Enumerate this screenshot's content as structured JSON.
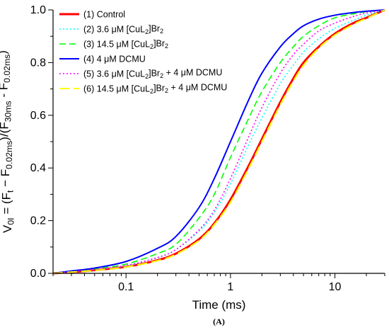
{
  "chart_data": {
    "type": "line",
    "panel_label": "(A)",
    "xlabel": "Time (ms)",
    "ylabel": {
      "parts": [
        "V",
        "0I",
        " = (F",
        "t",
        " − F",
        "0.02ms",
        ")/(F",
        "30ms",
        " - F",
        "0.02ms",
        ")"
      ]
    },
    "xscale": "log",
    "xlim": [
      0.02,
      30
    ],
    "ylim": [
      0.0,
      1.0
    ],
    "x_ticks": [
      0.1,
      1,
      10
    ],
    "x_tick_labels": [
      "0.1",
      "1",
      "10"
    ],
    "y_ticks": [
      0.0,
      0.2,
      0.4,
      0.6,
      0.8,
      1.0
    ],
    "y_tick_labels": [
      "0.0",
      "0.2",
      "0.4",
      "0.6",
      "0.8",
      "1.0"
    ],
    "legend_position": "top-left",
    "grid": false,
    "series": [
      {
        "name_parts": [
          "(1) Control"
        ],
        "color": "#ff0000",
        "dash": "solid",
        "x": [
          0.02,
          0.03,
          0.05,
          0.1,
          0.2,
          0.3,
          0.5,
          0.7,
          1.0,
          1.5,
          2.0,
          3.0,
          4.0,
          5.0,
          7.0,
          10.0,
          15.0,
          20.0,
          30.0
        ],
        "y": [
          0.0,
          0.005,
          0.012,
          0.025,
          0.05,
          0.075,
          0.13,
          0.19,
          0.28,
          0.41,
          0.51,
          0.65,
          0.74,
          0.8,
          0.86,
          0.91,
          0.95,
          0.97,
          1.0
        ]
      },
      {
        "name_parts": [
          "(2) 3.6 μM [CuL",
          "2",
          "]Br",
          "2"
        ],
        "color": "#00ffff",
        "dash": "dotted",
        "x": [
          0.02,
          0.03,
          0.05,
          0.1,
          0.2,
          0.3,
          0.5,
          0.7,
          1.0,
          1.5,
          2.0,
          3.0,
          4.0,
          5.0,
          7.0,
          10.0,
          15.0,
          20.0,
          30.0
        ],
        "y": [
          0.0,
          0.006,
          0.014,
          0.028,
          0.06,
          0.09,
          0.16,
          0.23,
          0.34,
          0.49,
          0.59,
          0.72,
          0.79,
          0.84,
          0.89,
          0.93,
          0.96,
          0.98,
          1.0
        ]
      },
      {
        "name_parts": [
          "(3) 14.5 μM [CuL",
          "2",
          "]Br",
          "2"
        ],
        "color": "#00ff00",
        "dash": "dashed",
        "x": [
          0.02,
          0.03,
          0.05,
          0.1,
          0.2,
          0.3,
          0.5,
          0.7,
          1.0,
          1.5,
          2.0,
          3.0,
          4.0,
          5.0,
          7.0,
          10.0,
          15.0,
          20.0,
          30.0
        ],
        "y": [
          0.0,
          0.007,
          0.017,
          0.035,
          0.075,
          0.11,
          0.21,
          0.3,
          0.44,
          0.59,
          0.69,
          0.8,
          0.86,
          0.9,
          0.94,
          0.97,
          0.985,
          0.993,
          1.0
        ]
      },
      {
        "name_parts": [
          "(4) 4 μM DCMU"
        ],
        "color": "#0000ff",
        "dash": "solid",
        "x": [
          0.02,
          0.03,
          0.05,
          0.1,
          0.2,
          0.3,
          0.5,
          0.7,
          1.0,
          1.5,
          2.0,
          3.0,
          4.0,
          5.0,
          7.0,
          10.0,
          15.0,
          20.0,
          30.0
        ],
        "y": [
          0.0,
          0.009,
          0.02,
          0.045,
          0.095,
          0.14,
          0.25,
          0.36,
          0.5,
          0.66,
          0.76,
          0.86,
          0.91,
          0.94,
          0.965,
          0.98,
          0.99,
          0.995,
          1.0
        ]
      },
      {
        "name_parts": [
          "(5) 3.6 μM [CuL",
          "2",
          "]Br",
          "2",
          " + 4 μM DCMU"
        ],
        "color": "#ff00ff",
        "dash": "dotted",
        "x": [
          0.02,
          0.03,
          0.05,
          0.1,
          0.2,
          0.3,
          0.5,
          0.7,
          1.0,
          1.5,
          2.0,
          3.0,
          4.0,
          5.0,
          7.0,
          10.0,
          15.0,
          20.0,
          30.0
        ],
        "y": [
          0.0,
          0.006,
          0.014,
          0.03,
          0.06,
          0.09,
          0.165,
          0.24,
          0.36,
          0.52,
          0.63,
          0.76,
          0.83,
          0.87,
          0.92,
          0.95,
          0.975,
          0.988,
          1.0
        ]
      },
      {
        "name_parts": [
          "(6) 14.5 μM [CuL",
          "2",
          "]Br",
          "2",
          " + 4 μM DCMU"
        ],
        "color": "#ffff00",
        "dash": "longdash",
        "x": [
          0.02,
          0.03,
          0.05,
          0.1,
          0.2,
          0.3,
          0.5,
          0.7,
          1.0,
          1.5,
          2.0,
          3.0,
          4.0,
          5.0,
          7.0,
          10.0,
          15.0,
          20.0,
          30.0
        ],
        "y": [
          0.0,
          0.005,
          0.011,
          0.024,
          0.048,
          0.072,
          0.125,
          0.185,
          0.27,
          0.4,
          0.5,
          0.64,
          0.73,
          0.79,
          0.855,
          0.905,
          0.945,
          0.968,
          1.0
        ]
      }
    ]
  }
}
